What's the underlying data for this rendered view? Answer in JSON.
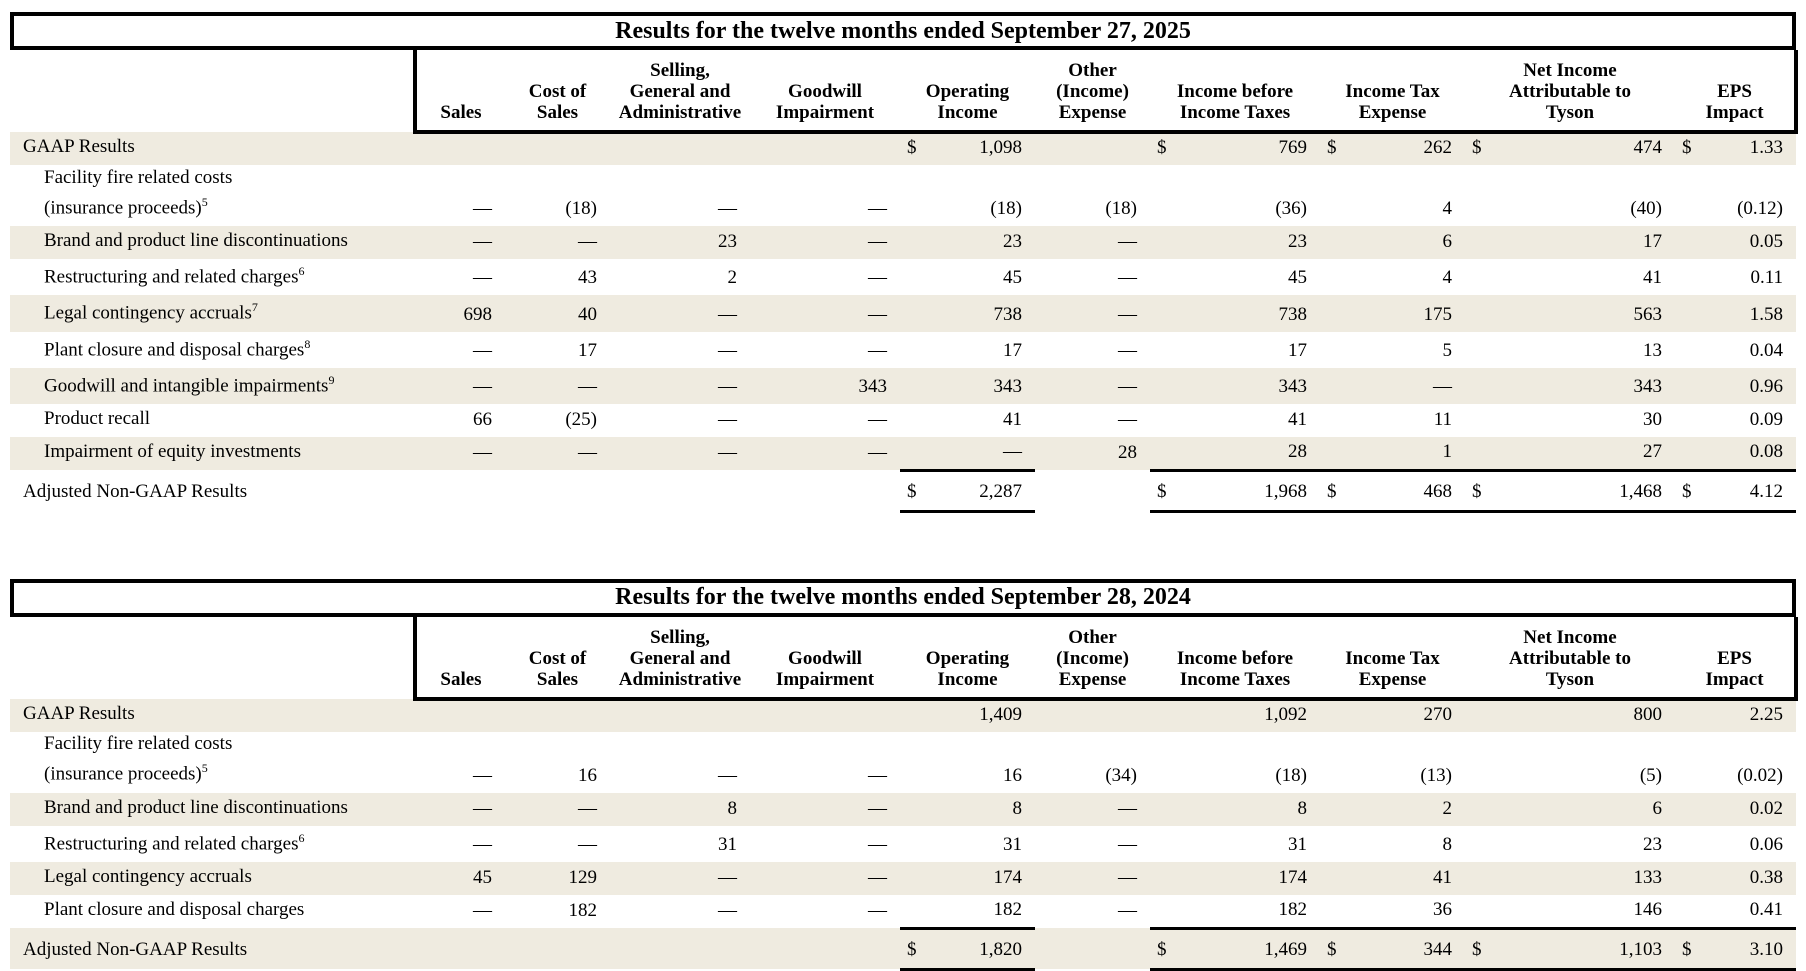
{
  "colors": {
    "stripe": "#efebe0",
    "border": "#000000",
    "text": "#000000",
    "background": "#ffffff"
  },
  "tables": [
    {
      "title": "Results for the twelve months ended September 27, 2025",
      "columns": [
        "Sales",
        "Cost of\nSales",
        "Selling,\nGeneral and\nAdministrative",
        "Goodwill\nImpairment",
        "Operating\nIncome",
        "Other\n(Income)\nExpense",
        "Income before\nIncome Taxes",
        "Income Tax\nExpense",
        "Net Income\nAttributable to\nTyson",
        "EPS\nImpact"
      ],
      "rows": [
        {
          "label": "GAAP Results",
          "sup": "",
          "indent": false,
          "shaded": true,
          "tall": false,
          "total": false,
          "cells": [
            [
              "",
              ""
            ],
            [
              "",
              ""
            ],
            [
              "",
              ""
            ],
            [
              "",
              ""
            ],
            [
              "$",
              "1,098"
            ],
            [
              "",
              ""
            ],
            [
              "$",
              "769"
            ],
            [
              "$",
              "262"
            ],
            [
              "$",
              "474"
            ],
            [
              "$",
              "1.33"
            ]
          ]
        },
        {
          "label": "Facility fire related costs\n(insurance proceeds)",
          "sup": "5",
          "indent": true,
          "shaded": false,
          "tall": true,
          "total": false,
          "cells": [
            [
              "",
              "—"
            ],
            [
              "",
              "(18)"
            ],
            [
              "",
              "—"
            ],
            [
              "",
              "—"
            ],
            [
              "",
              "(18)"
            ],
            [
              "",
              "(18)"
            ],
            [
              "",
              "(36)"
            ],
            [
              "",
              "4"
            ],
            [
              "",
              "(40)"
            ],
            [
              "",
              "(0.12)"
            ]
          ]
        },
        {
          "label": "Brand and product line discontinuations",
          "sup": "",
          "indent": true,
          "shaded": true,
          "tall": false,
          "total": false,
          "cells": [
            [
              "",
              "—"
            ],
            [
              "",
              "—"
            ],
            [
              "",
              "23"
            ],
            [
              "",
              "—"
            ],
            [
              "",
              "23"
            ],
            [
              "",
              "—"
            ],
            [
              "",
              "23"
            ],
            [
              "",
              "6"
            ],
            [
              "",
              "17"
            ],
            [
              "",
              "0.05"
            ]
          ]
        },
        {
          "label": "Restructuring and related charges",
          "sup": "6",
          "indent": true,
          "shaded": false,
          "tall": false,
          "total": false,
          "cells": [
            [
              "",
              "—"
            ],
            [
              "",
              "43"
            ],
            [
              "",
              "2"
            ],
            [
              "",
              "—"
            ],
            [
              "",
              "45"
            ],
            [
              "",
              "—"
            ],
            [
              "",
              "45"
            ],
            [
              "",
              "4"
            ],
            [
              "",
              "41"
            ],
            [
              "",
              "0.11"
            ]
          ]
        },
        {
          "label": "Legal contingency accruals",
          "sup": "7",
          "indent": true,
          "shaded": true,
          "tall": false,
          "total": false,
          "cells": [
            [
              "",
              "698"
            ],
            [
              "",
              "40"
            ],
            [
              "",
              "—"
            ],
            [
              "",
              "—"
            ],
            [
              "",
              "738"
            ],
            [
              "",
              "—"
            ],
            [
              "",
              "738"
            ],
            [
              "",
              "175"
            ],
            [
              "",
              "563"
            ],
            [
              "",
              "1.58"
            ]
          ]
        },
        {
          "label": "Plant closure and disposal charges",
          "sup": "8",
          "indent": true,
          "shaded": false,
          "tall": false,
          "total": false,
          "cells": [
            [
              "",
              "—"
            ],
            [
              "",
              "17"
            ],
            [
              "",
              "—"
            ],
            [
              "",
              "—"
            ],
            [
              "",
              "17"
            ],
            [
              "",
              "—"
            ],
            [
              "",
              "17"
            ],
            [
              "",
              "5"
            ],
            [
              "",
              "13"
            ],
            [
              "",
              "0.04"
            ]
          ]
        },
        {
          "label": "Goodwill and intangible impairments",
          "sup": "9",
          "indent": true,
          "shaded": true,
          "tall": false,
          "total": false,
          "cells": [
            [
              "",
              "—"
            ],
            [
              "",
              "—"
            ],
            [
              "",
              "—"
            ],
            [
              "",
              "343"
            ],
            [
              "",
              "343"
            ],
            [
              "",
              "—"
            ],
            [
              "",
              "343"
            ],
            [
              "",
              "—"
            ],
            [
              "",
              "343"
            ],
            [
              "",
              "0.96"
            ]
          ]
        },
        {
          "label": "Product recall",
          "sup": "",
          "indent": true,
          "shaded": false,
          "tall": false,
          "total": false,
          "cells": [
            [
              "",
              "66"
            ],
            [
              "",
              "(25)"
            ],
            [
              "",
              "—"
            ],
            [
              "",
              "—"
            ],
            [
              "",
              "41"
            ],
            [
              "",
              "—"
            ],
            [
              "",
              "41"
            ],
            [
              "",
              "11"
            ],
            [
              "",
              "30"
            ],
            [
              "",
              "0.09"
            ]
          ]
        },
        {
          "label": "Impairment of equity investments",
          "sup": "",
          "indent": true,
          "shaded": true,
          "tall": false,
          "total": false,
          "cells": [
            [
              "",
              "—"
            ],
            [
              "",
              "—"
            ],
            [
              "",
              "—"
            ],
            [
              "",
              "—"
            ],
            [
              "",
              "—"
            ],
            [
              "",
              "28"
            ],
            [
              "",
              "28"
            ],
            [
              "",
              "1"
            ],
            [
              "",
              "27"
            ],
            [
              "",
              "0.08"
            ]
          ]
        },
        {
          "label": "Adjusted Non-GAAP Results",
          "sup": "",
          "indent": false,
          "shaded": false,
          "tall": false,
          "total": true,
          "cells": [
            [
              "",
              ""
            ],
            [
              "",
              ""
            ],
            [
              "",
              ""
            ],
            [
              "",
              ""
            ],
            [
              "$",
              "2,287"
            ],
            [
              "",
              ""
            ],
            [
              "$",
              "1,968"
            ],
            [
              "$",
              "468"
            ],
            [
              "$",
              "1,468"
            ],
            [
              "$",
              "4.12"
            ]
          ]
        }
      ]
    },
    {
      "title": "Results for the twelve months ended September 28, 2024",
      "columns": [
        "Sales",
        "Cost of\nSales",
        "Selling,\nGeneral and\nAdministrative",
        "Goodwill\nImpairment",
        "Operating\nIncome",
        "Other\n(Income)\nExpense",
        "Income before\nIncome Taxes",
        "Income Tax\nExpense",
        "Net Income\nAttributable to\nTyson",
        "EPS\nImpact"
      ],
      "rows": [
        {
          "label": "GAAP Results",
          "sup": "",
          "indent": false,
          "shaded": true,
          "tall": false,
          "total": false,
          "cells": [
            [
              "",
              ""
            ],
            [
              "",
              ""
            ],
            [
              "",
              ""
            ],
            [
              "",
              ""
            ],
            [
              "",
              "1,409"
            ],
            [
              "",
              ""
            ],
            [
              "",
              "1,092"
            ],
            [
              "",
              "270"
            ],
            [
              "",
              "800"
            ],
            [
              "",
              "2.25"
            ]
          ]
        },
        {
          "label": "Facility fire related costs\n(insurance proceeds)",
          "sup": "5",
          "indent": true,
          "shaded": false,
          "tall": true,
          "total": false,
          "cells": [
            [
              "",
              "—"
            ],
            [
              "",
              "16"
            ],
            [
              "",
              "—"
            ],
            [
              "",
              "—"
            ],
            [
              "",
              "16"
            ],
            [
              "",
              "(34)"
            ],
            [
              "",
              "(18)"
            ],
            [
              "",
              "(13)"
            ],
            [
              "",
              "(5)"
            ],
            [
              "",
              "(0.02)"
            ]
          ]
        },
        {
          "label": "Brand and product line discontinuations",
          "sup": "",
          "indent": true,
          "shaded": true,
          "tall": false,
          "total": false,
          "cells": [
            [
              "",
              "—"
            ],
            [
              "",
              "—"
            ],
            [
              "",
              "8"
            ],
            [
              "",
              "—"
            ],
            [
              "",
              "8"
            ],
            [
              "",
              "—"
            ],
            [
              "",
              "8"
            ],
            [
              "",
              "2"
            ],
            [
              "",
              "6"
            ],
            [
              "",
              "0.02"
            ]
          ]
        },
        {
          "label": "Restructuring and related charges",
          "sup": "6",
          "indent": true,
          "shaded": false,
          "tall": false,
          "total": false,
          "cells": [
            [
              "",
              "—"
            ],
            [
              "",
              "—"
            ],
            [
              "",
              "31"
            ],
            [
              "",
              "—"
            ],
            [
              "",
              "31"
            ],
            [
              "",
              "—"
            ],
            [
              "",
              "31"
            ],
            [
              "",
              "8"
            ],
            [
              "",
              "23"
            ],
            [
              "",
              "0.06"
            ]
          ]
        },
        {
          "label": "Legal contingency accruals",
          "sup": "",
          "indent": true,
          "shaded": true,
          "tall": false,
          "total": false,
          "cells": [
            [
              "",
              "45"
            ],
            [
              "",
              "129"
            ],
            [
              "",
              "—"
            ],
            [
              "",
              "—"
            ],
            [
              "",
              "174"
            ],
            [
              "",
              "—"
            ],
            [
              "",
              "174"
            ],
            [
              "",
              "41"
            ],
            [
              "",
              "133"
            ],
            [
              "",
              "0.38"
            ]
          ]
        },
        {
          "label": "Plant closure and disposal charges",
          "sup": "",
          "indent": true,
          "shaded": false,
          "tall": false,
          "total": false,
          "cells": [
            [
              "",
              "—"
            ],
            [
              "",
              "182"
            ],
            [
              "",
              "—"
            ],
            [
              "",
              "—"
            ],
            [
              "",
              "182"
            ],
            [
              "",
              "—"
            ],
            [
              "",
              "182"
            ],
            [
              "",
              "36"
            ],
            [
              "",
              "146"
            ],
            [
              "",
              "0.41"
            ]
          ]
        },
        {
          "label": "Adjusted Non-GAAP Results",
          "sup": "",
          "indent": false,
          "shaded": true,
          "tall": false,
          "total": true,
          "cells": [
            [
              "",
              ""
            ],
            [
              "",
              ""
            ],
            [
              "",
              ""
            ],
            [
              "",
              ""
            ],
            [
              "$",
              "1,820"
            ],
            [
              "",
              ""
            ],
            [
              "$",
              "1,469"
            ],
            [
              "$",
              "344"
            ],
            [
              "$",
              "1,103"
            ],
            [
              "$",
              "3.10"
            ]
          ]
        }
      ]
    }
  ]
}
